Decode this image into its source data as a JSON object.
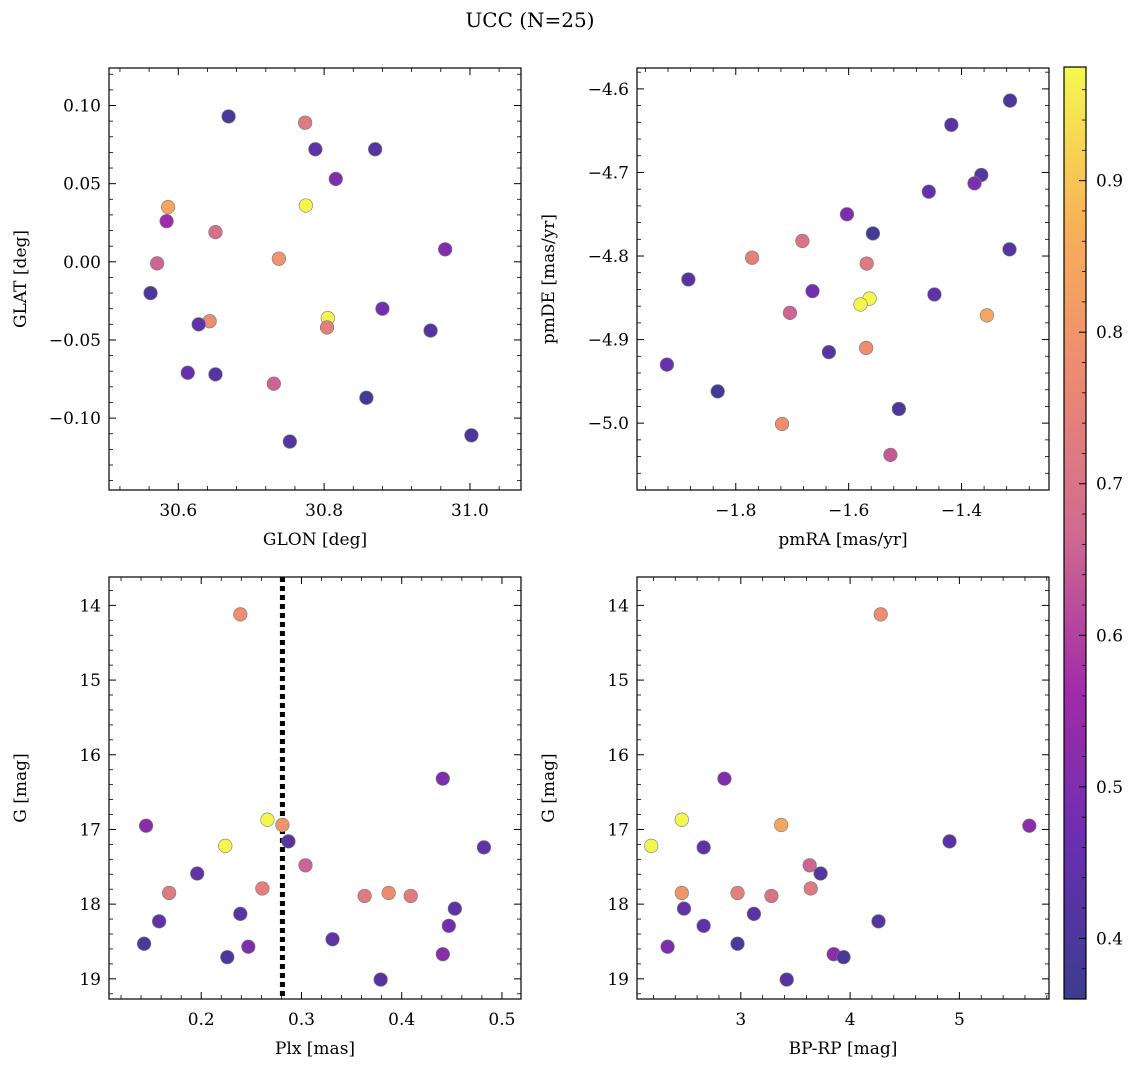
{
  "figure": {
    "title": "UCC (N=25)",
    "colorbar": {
      "range": [
        0.36,
        0.975
      ],
      "ticks": [
        0.4,
        0.5,
        0.6,
        0.7,
        0.8,
        0.9
      ],
      "tick_labels": [
        "0.4",
        "0.5",
        "0.6",
        "0.7",
        "0.8",
        "0.9"
      ]
    }
  },
  "chart_data": [
    {
      "type": "scatter",
      "xlabel": "GLON [deg]",
      "ylabel": "GLAT [deg]",
      "xlim": [
        30.505,
        31.07
      ],
      "ylim": [
        -0.146,
        0.124
      ],
      "y_inverted": false,
      "xticks": [
        30.6,
        30.8,
        31.0
      ],
      "xtick_labels": [
        "30.6",
        "30.8",
        "31.0"
      ],
      "yticks": [
        -0.1,
        -0.05,
        0.0,
        0.05,
        0.1
      ],
      "ytick_labels": [
        "−0.10",
        "−0.05",
        "0.00",
        "0.05",
        "0.10"
      ],
      "x": [
        30.669,
        30.774,
        30.788,
        30.87,
        30.816,
        30.586,
        30.584,
        30.775,
        30.651,
        30.571,
        30.738,
        30.966,
        30.562,
        30.805,
        30.643,
        30.628,
        30.804,
        30.88,
        30.946,
        30.613,
        30.651,
        30.731,
        30.858,
        30.753,
        31.002
      ],
      "y": [
        0.093,
        0.089,
        0.072,
        0.072,
        0.053,
        0.035,
        0.026,
        0.036,
        0.019,
        -0.001,
        0.002,
        0.008,
        -0.02,
        -0.036,
        -0.038,
        -0.04,
        -0.042,
        -0.03,
        -0.044,
        -0.071,
        -0.072,
        -0.078,
        -0.087,
        -0.115,
        -0.111
      ],
      "c": [
        0.39,
        0.72,
        0.44,
        0.42,
        0.5,
        0.84,
        0.56,
        0.97,
        0.69,
        0.66,
        0.8,
        0.5,
        0.4,
        0.97,
        0.78,
        0.44,
        0.74,
        0.48,
        0.42,
        0.45,
        0.42,
        0.66,
        0.38,
        0.42,
        0.4
      ]
    },
    {
      "type": "scatter",
      "xlabel": "pmRA [mas/yr]",
      "ylabel": "pmDE [mas/yr]",
      "xlim": [
        -1.975,
        -1.245
      ],
      "ylim": [
        -5.08,
        -4.575
      ],
      "y_inverted": false,
      "xticks": [
        -1.8,
        -1.6,
        -1.4
      ],
      "xtick_labels": [
        "−1.8",
        "−1.6",
        "−1.4"
      ],
      "yticks": [
        -5.0,
        -4.9,
        -4.8,
        -4.7,
        -4.6
      ],
      "ytick_labels": [
        "−5.0",
        "−4.9",
        "−4.8",
        "−4.7",
        "−4.6"
      ],
      "x": [
        -1.314,
        -1.418,
        -1.365,
        -1.377,
        -1.458,
        -1.603,
        -1.557,
        -1.682,
        -1.771,
        -1.568,
        -1.315,
        -1.884,
        -1.664,
        -1.448,
        -1.704,
        -1.563,
        -1.579,
        -1.355,
        -1.635,
        -1.569,
        -1.922,
        -1.832,
        -1.511,
        -1.718,
        -1.526
      ],
      "y": [
        -4.614,
        -4.643,
        -4.703,
        -4.713,
        -4.723,
        -4.75,
        -4.773,
        -4.782,
        -4.802,
        -4.809,
        -4.792,
        -4.828,
        -4.842,
        -4.846,
        -4.868,
        -4.851,
        -4.858,
        -4.871,
        -4.915,
        -4.91,
        -4.93,
        -4.962,
        -4.983,
        -5.001,
        -5.038
      ],
      "c": [
        0.4,
        0.42,
        0.42,
        0.5,
        0.45,
        0.5,
        0.38,
        0.7,
        0.74,
        0.72,
        0.42,
        0.42,
        0.48,
        0.44,
        0.66,
        0.97,
        0.97,
        0.84,
        0.42,
        0.78,
        0.46,
        0.38,
        0.4,
        0.78,
        0.64
      ]
    },
    {
      "type": "scatter",
      "xlabel": "Plx [mas]",
      "ylabel": "G [mag]",
      "xlim": [
        0.108,
        0.519
      ],
      "ylim": [
        13.62,
        19.27
      ],
      "y_inverted": true,
      "xticks": [
        0.2,
        0.3,
        0.4,
        0.5
      ],
      "xtick_labels": [
        "0.2",
        "0.3",
        "0.4",
        "0.5"
      ],
      "yticks": [
        14,
        15,
        16,
        17,
        18,
        19
      ],
      "ytick_labels": [
        "14",
        "15",
        "16",
        "17",
        "18",
        "19"
      ],
      "vline": 0.281,
      "x": [
        0.239,
        0.441,
        0.145,
        0.266,
        0.281,
        0.224,
        0.287,
        0.482,
        0.304,
        0.196,
        0.168,
        0.261,
        0.363,
        0.387,
        0.409,
        0.453,
        0.239,
        0.158,
        0.447,
        0.247,
        0.331,
        0.143,
        0.226,
        0.441,
        0.379
      ],
      "y": [
        14.12,
        16.32,
        16.95,
        16.87,
        16.94,
        17.22,
        17.16,
        17.24,
        17.48,
        17.59,
        17.85,
        17.79,
        17.89,
        17.85,
        17.89,
        18.06,
        18.13,
        18.23,
        18.29,
        18.57,
        18.47,
        18.53,
        18.71,
        18.67,
        19.01
      ],
      "c": [
        0.78,
        0.5,
        0.52,
        0.97,
        0.8,
        0.97,
        0.42,
        0.44,
        0.66,
        0.44,
        0.72,
        0.74,
        0.72,
        0.78,
        0.72,
        0.44,
        0.42,
        0.44,
        0.48,
        0.5,
        0.44,
        0.4,
        0.4,
        0.52,
        0.42
      ]
    },
    {
      "type": "scatter",
      "xlabel": "BP-RP [mag]",
      "ylabel": "G [mag]",
      "xlim": [
        2.05,
        5.82
      ],
      "ylim": [
        13.62,
        19.27
      ],
      "y_inverted": true,
      "xticks": [
        3,
        4,
        5
      ],
      "xtick_labels": [
        "3",
        "4",
        "5"
      ],
      "yticks": [
        14,
        15,
        16,
        17,
        18,
        19
      ],
      "ytick_labels": [
        "14",
        "15",
        "16",
        "17",
        "18",
        "19"
      ],
      "x": [
        4.28,
        2.85,
        2.46,
        3.37,
        5.64,
        2.18,
        2.66,
        4.91,
        3.63,
        3.73,
        2.46,
        2.97,
        3.64,
        3.28,
        2.48,
        3.12,
        4.26,
        2.66,
        2.33,
        3.85,
        2.97,
        3.94,
        3.42
      ],
      "y": [
        14.12,
        16.32,
        16.87,
        16.94,
        16.95,
        17.22,
        17.24,
        17.16,
        17.48,
        17.59,
        17.85,
        17.85,
        17.79,
        17.89,
        18.06,
        18.13,
        18.23,
        18.29,
        18.57,
        18.67,
        18.53,
        18.71,
        19.01
      ],
      "c": [
        0.78,
        0.5,
        0.97,
        0.84,
        0.52,
        0.97,
        0.44,
        0.42,
        0.66,
        0.42,
        0.8,
        0.74,
        0.72,
        0.7,
        0.44,
        0.42,
        0.42,
        0.44,
        0.5,
        0.52,
        0.4,
        0.4,
        0.42
      ]
    }
  ]
}
